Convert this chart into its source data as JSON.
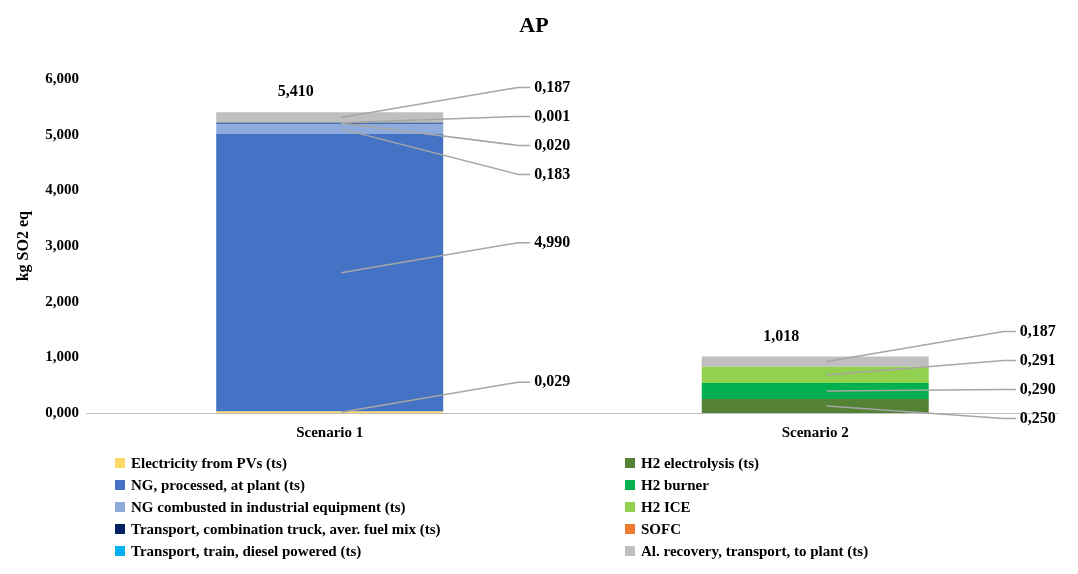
{
  "chart_data": {
    "type": "bar",
    "title": "AP",
    "ylabel": "kg SO2 eq",
    "categories": [
      "Scenario 1",
      "Scenario 2"
    ],
    "stacked": true,
    "ylim": [
      0,
      6
    ],
    "yticks": [
      {
        "value": 0,
        "label": "0,000"
      },
      {
        "value": 1,
        "label": "1,000"
      },
      {
        "value": 2,
        "label": "2,000"
      },
      {
        "value": 3,
        "label": "3,000"
      },
      {
        "value": 4,
        "label": "4,000"
      },
      {
        "value": 5,
        "label": "5,000"
      },
      {
        "value": 6,
        "label": "6,000"
      }
    ],
    "grid": false,
    "legend": "bottom",
    "totals": [
      "5,410",
      "1,018"
    ],
    "series": [
      {
        "name": "Electricity from PVs (ts)",
        "color": "#ffd966",
        "values": [
          0.029,
          null
        ],
        "value_labels": [
          "0,029",
          null
        ]
      },
      {
        "name": "NG, processed, at plant (ts)",
        "color": "#4472c4",
        "values": [
          4.99,
          null
        ],
        "value_labels": [
          "4,990",
          null
        ]
      },
      {
        "name": "NG combusted in industrial equipment (ts)",
        "color": "#8faadc",
        "values": [
          0.183,
          null
        ],
        "value_labels": [
          "0,183",
          null
        ]
      },
      {
        "name": "Transport, combination truck, aver. fuel mix (ts)",
        "color": "#002060",
        "values": [
          0.02,
          null
        ],
        "value_labels": [
          "0,020",
          null
        ]
      },
      {
        "name": "Transport, train, diesel powered (ts)",
        "color": "#00b0f0",
        "values": [
          0.001,
          null
        ],
        "value_labels": [
          "0,001",
          null
        ]
      },
      {
        "name": "H2 electrolysis (ts)",
        "color": "#548235",
        "values": [
          null,
          0.25
        ],
        "value_labels": [
          null,
          "0,250"
        ]
      },
      {
        "name": "H2 burner",
        "color": "#00b050",
        "values": [
          null,
          0.29
        ],
        "value_labels": [
          null,
          "0,290"
        ]
      },
      {
        "name": "H2 ICE",
        "color": "#92d050",
        "values": [
          null,
          0.291
        ],
        "value_labels": [
          null,
          "0,291"
        ]
      },
      {
        "name": "SOFC",
        "color": "#ed7d31",
        "values": [
          null,
          null
        ],
        "value_labels": [
          null,
          null
        ]
      },
      {
        "name": " Al. recovery, transport, to plant (ts)",
        "color": "#bfbfbf",
        "values": [
          0.187,
          0.187
        ],
        "value_labels": [
          "0,187",
          "0,187"
        ]
      }
    ]
  }
}
